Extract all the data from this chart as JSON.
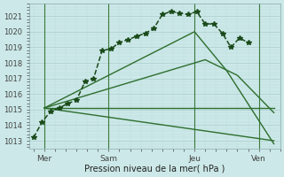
{
  "xlabel": "Pression niveau de la mer( hPa )",
  "bg_color": "#cce8e8",
  "grid_major_color": "#aacccc",
  "grid_minor_color": "#bbdddd",
  "line_color": "#2d6e2d",
  "dark_line_color": "#1a4a1a",
  "ylim": [
    1012.5,
    1021.8
  ],
  "xlim": [
    -0.2,
    11.5
  ],
  "xtick_labels": [
    "Mer",
    "Sam",
    "Jeu",
    "Ven"
  ],
  "xtick_positions": [
    0.5,
    3.5,
    7.5,
    10.5
  ],
  "ytick_values": [
    1013,
    1014,
    1015,
    1016,
    1017,
    1018,
    1019,
    1020,
    1021
  ],
  "vline_positions": [
    0.5,
    3.5,
    7.5,
    10.5
  ],
  "series_main": {
    "x": [
      0,
      0.4,
      0.8,
      1.2,
      1.6,
      2.0,
      2.4,
      2.8,
      3.2,
      3.6,
      4.0,
      4.4,
      4.8,
      5.2,
      5.6,
      6.0,
      6.4,
      6.8,
      7.2,
      7.6,
      8.0,
      8.4,
      8.8,
      9.2,
      9.6,
      10.0
    ],
    "y": [
      1013.2,
      1014.2,
      1014.9,
      1015.1,
      1015.4,
      1015.6,
      1016.8,
      1017.0,
      1018.8,
      1018.9,
      1019.3,
      1019.5,
      1019.7,
      1019.9,
      1020.2,
      1021.1,
      1021.3,
      1021.2,
      1021.1,
      1021.3,
      1020.5,
      1020.5,
      1019.9,
      1019.0,
      1019.6,
      1019.3
    ],
    "marker": "*",
    "markersize": 4,
    "linewidth": 1.1,
    "linestyle": "--"
  },
  "series_lines": [
    {
      "x": [
        0.5,
        11.2
      ],
      "y": [
        1015.1,
        1013.0
      ],
      "linewidth": 1.0
    },
    {
      "x": [
        0.5,
        11.2
      ],
      "y": [
        1015.1,
        1015.1
      ],
      "linewidth": 1.0
    },
    {
      "x": [
        0.5,
        8.0,
        9.5,
        11.2
      ],
      "y": [
        1015.1,
        1018.2,
        1017.2,
        1014.8
      ],
      "linewidth": 1.0
    },
    {
      "x": [
        0.5,
        7.5,
        9.0,
        11.2
      ],
      "y": [
        1015.1,
        1020.0,
        1017.5,
        1012.8
      ],
      "linewidth": 1.0
    }
  ]
}
